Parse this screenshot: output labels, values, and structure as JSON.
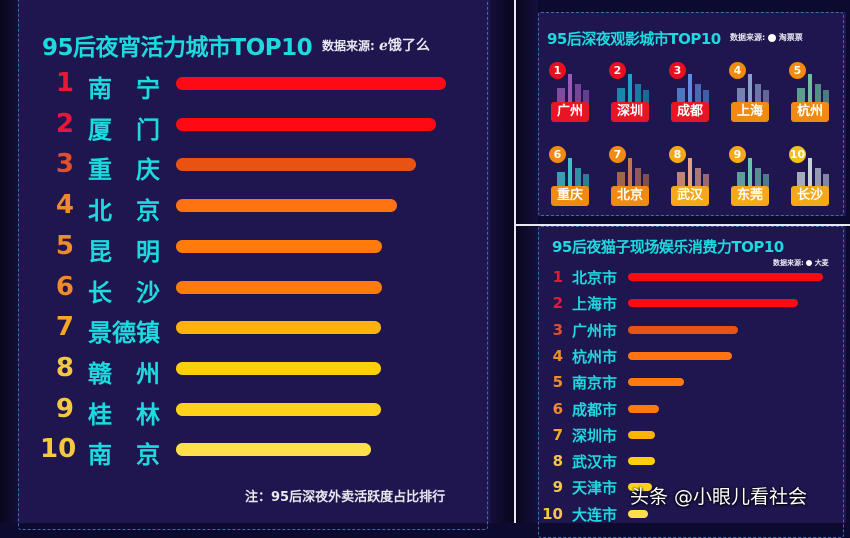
{
  "left_panel": {
    "title": "95后夜宵活力城市TOP10",
    "source_label": "数据来源:",
    "source_brand": "饿了么",
    "note": "注：95后深夜外卖活跃度占比排行",
    "items": [
      {
        "rank": "1",
        "city": "南　宁",
        "bar_end": 446,
        "color": "#ff0a14",
        "rank_color": "#e8173a"
      },
      {
        "rank": "2",
        "city": "厦　门",
        "bar_end": 436,
        "color": "#ff0a14",
        "rank_color": "#e8173a"
      },
      {
        "rank": "3",
        "city": "重　庆",
        "bar_end": 416,
        "color": "#e9530f",
        "rank_color": "#e0502a"
      },
      {
        "rank": "4",
        "city": "北　京",
        "bar_end": 397,
        "color": "#ff7410",
        "rank_color": "#f08a2a"
      },
      {
        "rank": "5",
        "city": "昆　明",
        "bar_end": 382,
        "color": "#ff7c0a",
        "rank_color": "#f08a2a"
      },
      {
        "rank": "6",
        "city": "长　沙",
        "bar_end": 382,
        "color": "#ff7c0a",
        "rank_color": "#f08a2a"
      },
      {
        "rank": "7",
        "city": "景德镇",
        "bar_end": 381,
        "color": "#ffb20a",
        "rank_color": "#f5a623"
      },
      {
        "rank": "8",
        "city": "赣　州",
        "bar_end": 381,
        "color": "#ffcf0a",
        "rank_color": "#f5c842"
      },
      {
        "rank": "9",
        "city": "桂　林",
        "bar_end": 381,
        "color": "#ffd21a",
        "rank_color": "#f5c842"
      },
      {
        "rank": "10",
        "city": "南　京",
        "bar_end": 371,
        "color": "#ffe04a",
        "rank_color": "#f5c842"
      }
    ]
  },
  "top_right_panel": {
    "title": "95后深夜观影城市TOP10",
    "source_label": "数据来源:",
    "source_brand": "淘票票",
    "cities": [
      {
        "rank": "1",
        "name": "广州",
        "badge_color": "#e8101e",
        "label_color": "#e81624"
      },
      {
        "rank": "2",
        "name": "深圳",
        "badge_color": "#e8101e",
        "label_color": "#e81624"
      },
      {
        "rank": "3",
        "name": "成都",
        "badge_color": "#e8101e",
        "label_color": "#e81624"
      },
      {
        "rank": "4",
        "name": "上海",
        "badge_color": "#f08a10",
        "label_color": "#f08a10"
      },
      {
        "rank": "5",
        "name": "杭州",
        "badge_color": "#f08a10",
        "label_color": "#f08a10"
      },
      {
        "rank": "6",
        "name": "重庆",
        "badge_color": "#f08a10",
        "label_color": "#f08a10"
      },
      {
        "rank": "7",
        "name": "北京",
        "badge_color": "#f08a10",
        "label_color": "#f08a10"
      },
      {
        "rank": "8",
        "name": "武汉",
        "badge_color": "#f5a81a",
        "label_color": "#f5a81a"
      },
      {
        "rank": "9",
        "name": "东莞",
        "badge_color": "#f5a81a",
        "label_color": "#f5a81a"
      },
      {
        "rank": "10",
        "name": "长沙",
        "badge_color": "#f2c21a",
        "label_color": "#f5a81a"
      }
    ]
  },
  "bottom_right_panel": {
    "title": "95后夜猫子现场娱乐消费力TOP10",
    "source_label": "数据来源:",
    "source_brand": "大麦",
    "items": [
      {
        "rank": "1",
        "city": "北京市",
        "bar_end": 823,
        "color": "#ff0a14",
        "rank_color": "#e8173a"
      },
      {
        "rank": "2",
        "city": "上海市",
        "bar_end": 798,
        "color": "#ff0a14",
        "rank_color": "#e8173a"
      },
      {
        "rank": "3",
        "city": "广州市",
        "bar_end": 738,
        "color": "#e9530f",
        "rank_color": "#e0502a"
      },
      {
        "rank": "4",
        "city": "杭州市",
        "bar_end": 732,
        "color": "#ff7410",
        "rank_color": "#f08a2a"
      },
      {
        "rank": "5",
        "city": "南京市",
        "bar_end": 684,
        "color": "#ff7c0a",
        "rank_color": "#f08a2a"
      },
      {
        "rank": "6",
        "city": "成都市",
        "bar_end": 659,
        "color": "#ff7c0a",
        "rank_color": "#f08a2a"
      },
      {
        "rank": "7",
        "city": "深圳市",
        "bar_end": 655,
        "color": "#ffb20a",
        "rank_color": "#f5a623"
      },
      {
        "rank": "8",
        "city": "武汉市",
        "bar_end": 655,
        "color": "#ffcf0a",
        "rank_color": "#f5c842"
      },
      {
        "rank": "9",
        "city": "天津市",
        "bar_end": 652,
        "color": "#ffd21a",
        "rank_color": "#f5c842"
      },
      {
        "rank": "10",
        "city": "大连市",
        "bar_end": 648,
        "color": "#ffe04a",
        "rank_color": "#f5c842"
      }
    ]
  },
  "watermark": "头条 @小眼儿看社会",
  "chart_data": [
    {
      "type": "bar",
      "title": "95后夜宵活力城市TOP10",
      "subtitle": "数据来源: 饿了么",
      "annotation": "注：95后深夜外卖活跃度占比排行",
      "orientation": "horizontal",
      "categories": [
        "南宁",
        "厦门",
        "重庆",
        "北京",
        "昆明",
        "长沙",
        "景德镇",
        "赣州",
        "桂林",
        "南京"
      ],
      "values": [
        100,
        96,
        89,
        82,
        76,
        76,
        75,
        75,
        75,
        72
      ],
      "value_note": "relative bar length (% of max), estimated from pixels; no axis shown",
      "xlabel": "",
      "ylabel": "",
      "grid": false,
      "legend": "none"
    },
    {
      "type": "table",
      "title": "95后深夜观影城市TOP10",
      "subtitle": "数据来源: 淘票票",
      "categories": [
        "广州",
        "深圳",
        "成都",
        "上海",
        "杭州",
        "重庆",
        "北京",
        "武汉",
        "东莞",
        "长沙"
      ],
      "values": [
        1,
        2,
        3,
        4,
        5,
        6,
        7,
        8,
        9,
        10
      ]
    },
    {
      "type": "bar",
      "title": "95后夜猫子现场娱乐消费力TOP10",
      "subtitle": "数据来源: 大麦",
      "orientation": "horizontal",
      "categories": [
        "北京市",
        "上海市",
        "广州市",
        "杭州市",
        "南京市",
        "成都市",
        "深圳市",
        "武汉市",
        "天津市",
        "大连市"
      ],
      "values": [
        100,
        87,
        56,
        53,
        29,
        16,
        14,
        14,
        12,
        10
      ],
      "value_note": "relative bar length (% of max), estimated from pixels; no axis shown",
      "xlabel": "",
      "ylabel": "",
      "grid": false,
      "legend": "none"
    }
  ]
}
